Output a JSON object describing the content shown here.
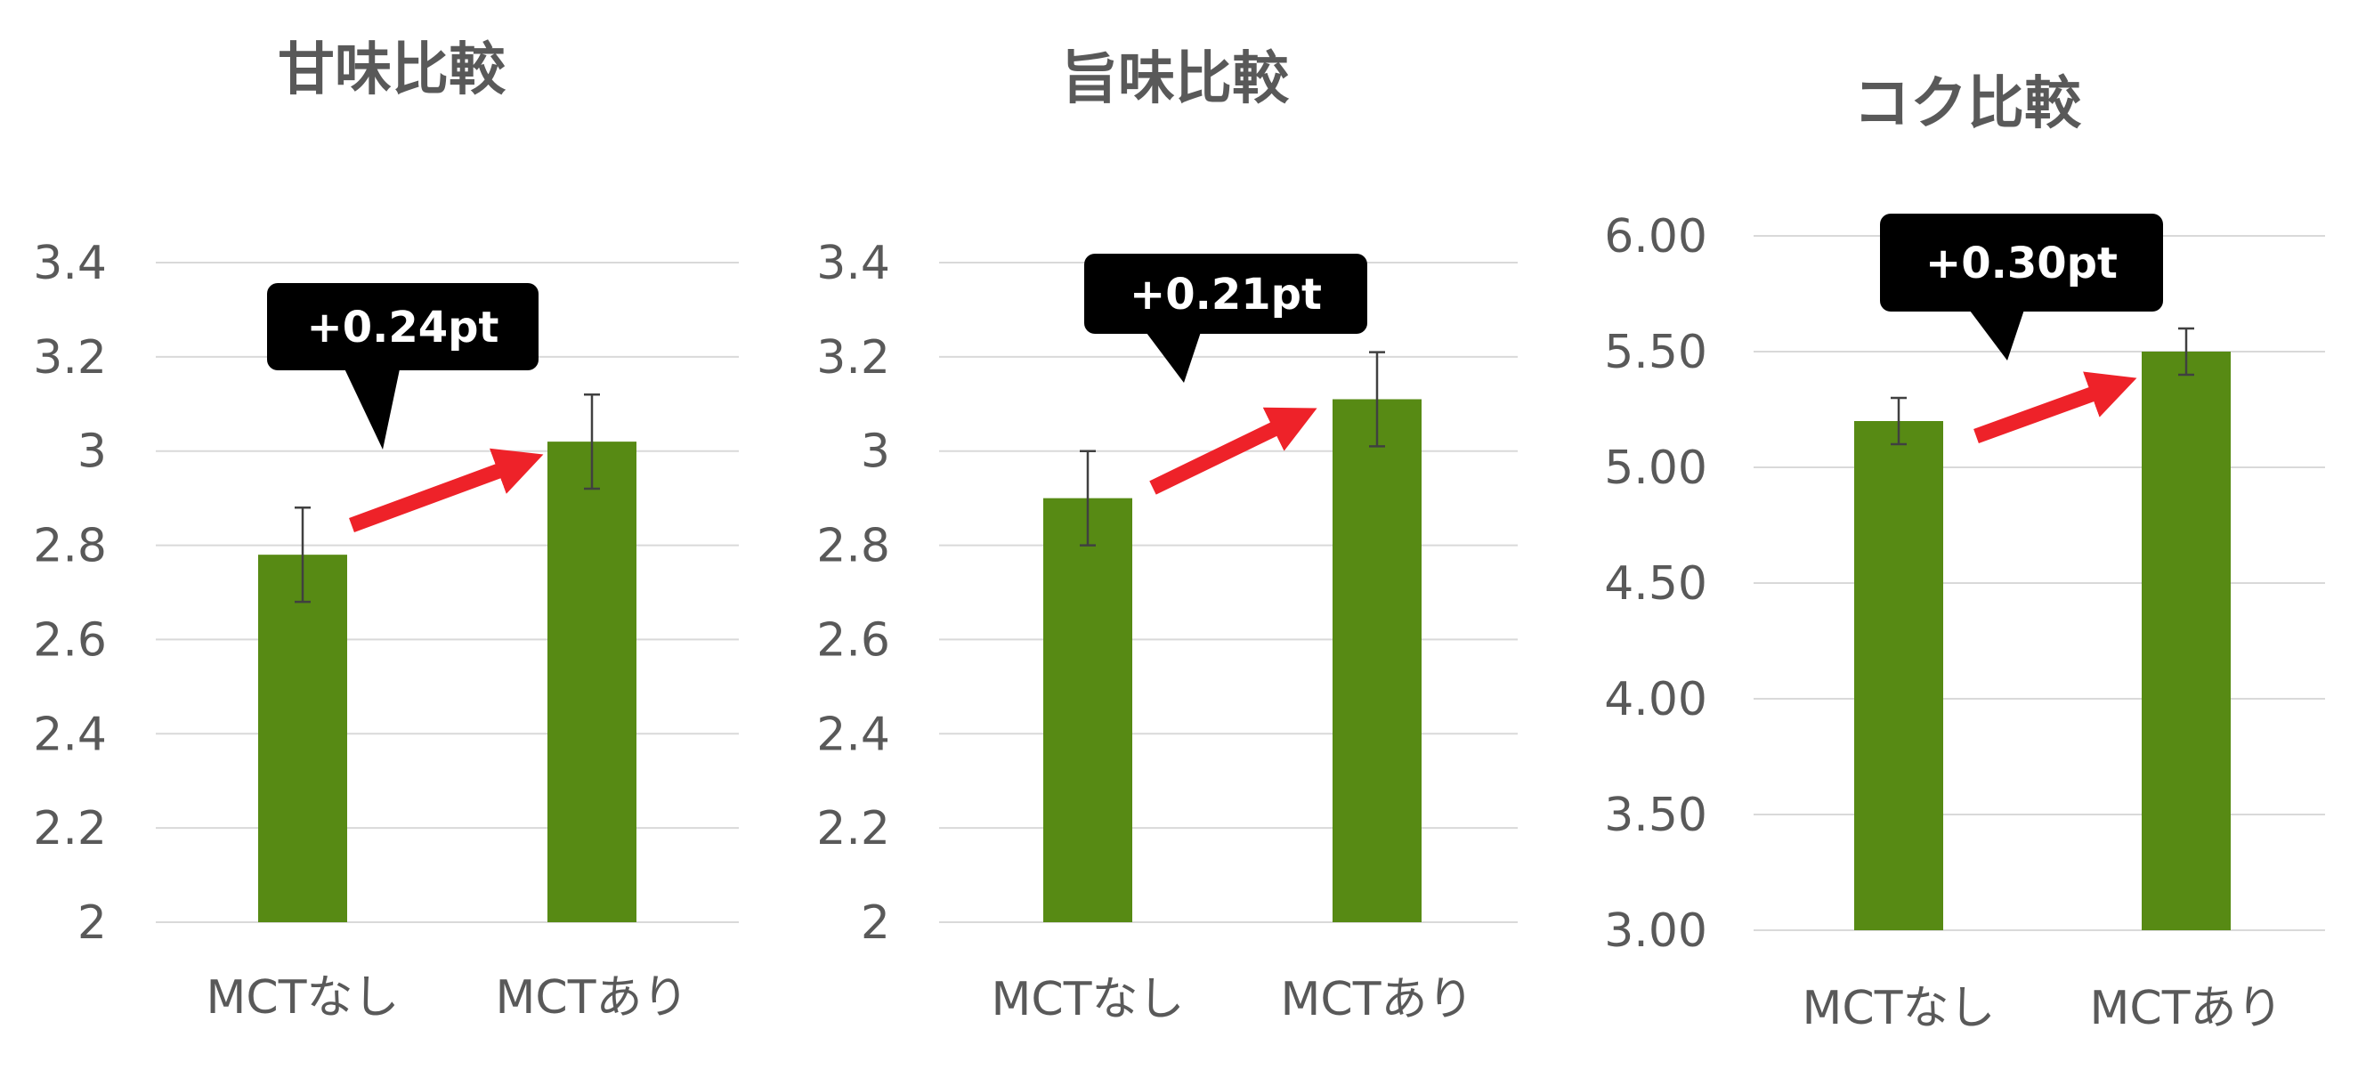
{
  "colors": {
    "bar": "#578a14",
    "grid": "#d9d9d9",
    "text": "#595959",
    "error_bar": "#404040",
    "arrow": "#ee2229",
    "callout_bg": "#000000",
    "callout_text": "#ffffff"
  },
  "chart_data": [
    {
      "type": "bar",
      "title": "甘味比較",
      "categories": [
        "MCTなし",
        "MCTあり"
      ],
      "values": [
        2.78,
        3.02
      ],
      "error": [
        0.1,
        0.1
      ],
      "ylim": [
        2,
        3.4
      ],
      "yticks": [
        "2",
        "2.2",
        "2.4",
        "2.6",
        "2.8",
        "3",
        "3.2",
        "3.4"
      ],
      "annotation": "+0.24pt",
      "grid": true,
      "legend": "none"
    },
    {
      "type": "bar",
      "title": "旨味比較",
      "categories": [
        "MCTなし",
        "MCTあり"
      ],
      "values": [
        2.9,
        3.11
      ],
      "error": [
        0.1,
        0.1
      ],
      "ylim": [
        2,
        3.4
      ],
      "yticks": [
        "2",
        "2.2",
        "2.4",
        "2.6",
        "2.8",
        "3",
        "3.2",
        "3.4"
      ],
      "annotation": "+0.21pt",
      "grid": true,
      "legend": "none"
    },
    {
      "type": "bar",
      "title": "コク比較",
      "categories": [
        "MCTなし",
        "MCTあり"
      ],
      "values": [
        5.2,
        5.5
      ],
      "error": [
        0.1,
        0.1
      ],
      "ylim": [
        3.0,
        6.0
      ],
      "yticks": [
        "3.00",
        "3.50",
        "4.00",
        "4.50",
        "5.00",
        "5.50",
        "6.00"
      ],
      "annotation": "+0.30pt",
      "grid": true,
      "legend": "none"
    }
  ]
}
